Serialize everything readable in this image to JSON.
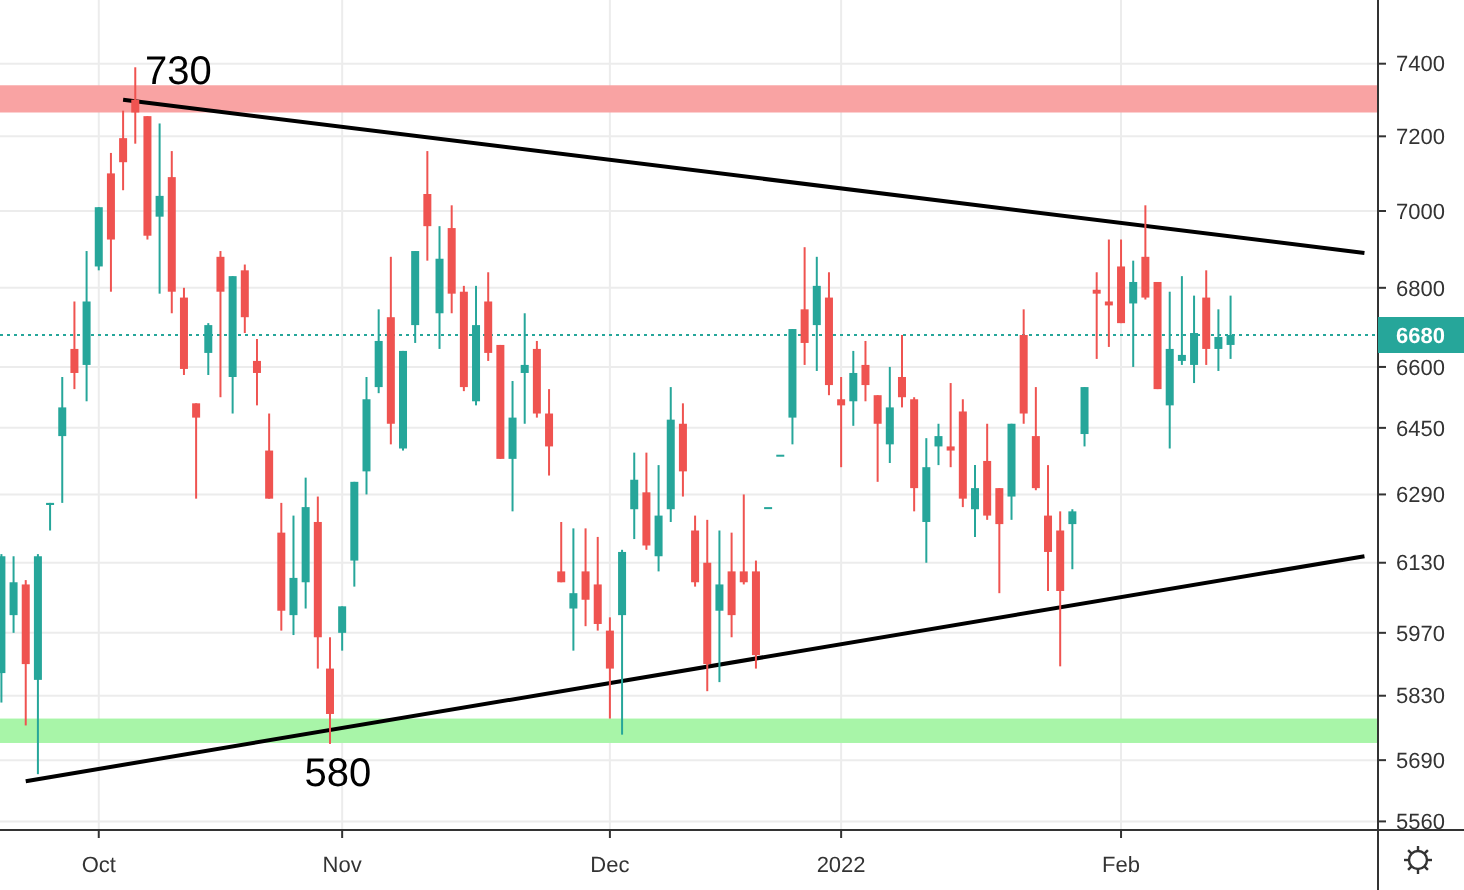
{
  "chart_data": {
    "type": "candlestick",
    "log": true,
    "grid": true,
    "categories": [
      null,
      null,
      null,
      null,
      null,
      null,
      null,
      null,
      "Oct",
      null,
      null,
      null,
      null,
      null,
      null,
      null,
      null,
      null,
      null,
      null,
      null,
      null,
      null,
      null,
      null,
      null,
      null,
      null,
      "Nov",
      null,
      null,
      null,
      null,
      null,
      null,
      null,
      null,
      null,
      null,
      null,
      null,
      null,
      null,
      null,
      null,
      null,
      null,
      null,
      null,
      null,
      "Dec",
      null,
      null,
      null,
      null,
      null,
      null,
      null,
      null,
      null,
      null,
      null,
      null,
      null,
      null,
      null,
      null,
      null,
      null,
      "2022",
      null,
      null,
      null,
      null,
      null,
      null,
      null,
      null,
      null,
      null,
      null,
      null,
      null,
      null,
      null,
      null,
      null,
      null,
      null,
      null,
      null,
      null,
      "Feb",
      null,
      null,
      null,
      null,
      null,
      null,
      null,
      null,
      null,
      null,
      null,
      null,
      null,
      null,
      null,
      null,
      null,
      null,
      null,
      null
    ],
    "ohlc": [
      [
        5880,
        6150,
        5815,
        6145
      ],
      [
        6010,
        6145,
        5970,
        6085
      ],
      [
        6080,
        6090,
        5765,
        5900
      ],
      [
        5865,
        6150,
        5660,
        6145
      ],
      [
        6265,
        6270,
        6205,
        6270
      ],
      [
        6430,
        6575,
        6270,
        6500
      ],
      [
        6645,
        6765,
        6545,
        6585
      ],
      [
        6605,
        6895,
        6515,
        6765
      ],
      [
        6855,
        7010,
        6845,
        7010
      ],
      [
        7100,
        7155,
        6790,
        6925
      ],
      [
        7195,
        7270,
        7055,
        7130
      ],
      [
        7300,
        7390,
        7180,
        7265
      ],
      [
        7255,
        7255,
        6925,
        6935
      ],
      [
        6985,
        7235,
        6785,
        7040
      ],
      [
        7090,
        7160,
        6735,
        6790
      ],
      [
        6775,
        6800,
        6580,
        6595
      ],
      [
        6510,
        6510,
        6280,
        6475
      ],
      [
        6635,
        6710,
        6580,
        6705
      ],
      [
        6880,
        6895,
        6525,
        6790
      ],
      [
        6575,
        6830,
        6485,
        6830
      ],
      [
        6845,
        6860,
        6685,
        6725
      ],
      [
        6615,
        6670,
        6505,
        6585
      ],
      [
        6395,
        6485,
        6280,
        6280
      ],
      [
        6200,
        6270,
        5975,
        6020
      ],
      [
        6010,
        6240,
        5965,
        6095
      ],
      [
        6085,
        6330,
        6025,
        6260
      ],
      [
        6225,
        6285,
        5890,
        5960
      ],
      [
        5890,
        5960,
        5725,
        5790
      ],
      [
        5970,
        6030,
        5930,
        6030
      ],
      [
        6135,
        6320,
        6075,
        6320
      ],
      [
        6345,
        6575,
        6290,
        6520
      ],
      [
        6550,
        6745,
        6535,
        6665
      ],
      [
        6725,
        6880,
        6410,
        6460
      ],
      [
        6400,
        6640,
        6395,
        6640
      ],
      [
        6705,
        6895,
        6660,
        6895
      ],
      [
        7045,
        7160,
        6870,
        6960
      ],
      [
        6735,
        6960,
        6645,
        6875
      ],
      [
        6955,
        7015,
        6735,
        6785
      ],
      [
        6790,
        6805,
        6540,
        6550
      ],
      [
        6515,
        6805,
        6505,
        6705
      ],
      [
        6765,
        6840,
        6615,
        6635
      ],
      [
        6655,
        6655,
        6375,
        6375
      ],
      [
        6375,
        6565,
        6250,
        6475
      ],
      [
        6585,
        6735,
        6460,
        6605
      ],
      [
        6645,
        6665,
        6475,
        6485
      ],
      [
        6485,
        6545,
        6335,
        6405
      ],
      [
        6110,
        6225,
        6085,
        6085
      ],
      [
        6025,
        6210,
        5930,
        6060
      ],
      [
        6110,
        6210,
        5985,
        6045
      ],
      [
        6080,
        6190,
        5975,
        5990
      ],
      [
        5975,
        6005,
        5780,
        5890
      ],
      [
        6010,
        6160,
        5745,
        6155
      ],
      [
        6255,
        6390,
        6185,
        6325
      ],
      [
        6295,
        6390,
        6160,
        6170
      ],
      [
        6145,
        6360,
        6110,
        6240
      ],
      [
        6255,
        6550,
        6225,
        6470
      ],
      [
        6460,
        6510,
        6285,
        6345
      ],
      [
        6205,
        6240,
        6075,
        6085
      ],
      [
        6130,
        6230,
        5840,
        5900
      ],
      [
        6020,
        6205,
        5860,
        6080
      ],
      [
        6110,
        6200,
        5960,
        6010
      ],
      [
        6110,
        6290,
        6080,
        6085
      ],
      [
        6110,
        6135,
        5890,
        5920
      ],
      [
        6260,
        6260,
        6260,
        6260
      ],
      [
        6385,
        6385,
        6385,
        6385
      ],
      [
        6475,
        6695,
        6410,
        6695
      ],
      [
        6745,
        6905,
        6605,
        6660
      ],
      [
        6705,
        6880,
        6590,
        6805
      ],
      [
        6775,
        6840,
        6530,
        6555
      ],
      [
        6520,
        6575,
        6355,
        6505
      ],
      [
        6515,
        6640,
        6455,
        6585
      ],
      [
        6605,
        6665,
        6515,
        6555
      ],
      [
        6530,
        6530,
        6320,
        6460
      ],
      [
        6410,
        6600,
        6365,
        6500
      ],
      [
        6575,
        6680,
        6500,
        6525
      ],
      [
        6520,
        6525,
        6250,
        6305
      ],
      [
        6225,
        6425,
        6130,
        6355
      ],
      [
        6405,
        6460,
        6360,
        6430
      ],
      [
        6405,
        6560,
        6355,
        6395
      ],
      [
        6490,
        6520,
        6260,
        6280
      ],
      [
        6255,
        6360,
        6190,
        6305
      ],
      [
        6370,
        6460,
        6230,
        6240
      ],
      [
        6305,
        6305,
        6060,
        6220
      ],
      [
        6285,
        6460,
        6230,
        6460
      ],
      [
        6680,
        6745,
        6460,
        6485
      ],
      [
        6430,
        6550,
        6300,
        6305
      ],
      [
        6240,
        6360,
        6065,
        6155
      ],
      [
        6205,
        6250,
        5895,
        6065
      ],
      [
        6220,
        6255,
        6115,
        6250
      ],
      [
        6435,
        6550,
        6405,
        6550
      ],
      [
        6795,
        6840,
        6620,
        6785
      ],
      [
        6765,
        6925,
        6650,
        6755
      ],
      [
        6855,
        6925,
        6710,
        6710
      ],
      [
        6760,
        6870,
        6600,
        6815
      ],
      [
        6880,
        7015,
        6770,
        6775
      ],
      [
        6815,
        6815,
        6545,
        6545
      ],
      [
        6505,
        6790,
        6400,
        6645
      ],
      [
        6615,
        6830,
        6605,
        6630
      ],
      [
        6605,
        6780,
        6560,
        6685
      ],
      [
        6775,
        6845,
        6605,
        6645
      ],
      [
        6645,
        6745,
        6590,
        6675
      ],
      [
        6655,
        6780,
        6620,
        6680
      ],
      null,
      null,
      null,
      null,
      null,
      null,
      null,
      null,
      null,
      null,
      null
    ],
    "colors": [
      "#26a69a",
      "#26a69a",
      "#ef5350",
      "#26a69a",
      "#26a69a",
      "#26a69a",
      "#ef5350",
      "#26a69a",
      "#26a69a",
      "#ef5350",
      "#ef5350",
      "#ef5350",
      "#ef5350",
      "#26a69a",
      "#ef5350",
      "#ef5350",
      "#ef5350",
      "#26a69a",
      "#ef5350",
      "#26a69a",
      "#ef5350",
      "#ef5350",
      "#ef5350",
      "#ef5350",
      "#26a69a",
      "#26a69a",
      "#ef5350",
      "#ef5350",
      "#26a69a",
      "#26a69a",
      "#26a69a",
      "#26a69a",
      "#ef5350",
      "#26a69a",
      "#26a69a",
      "#ef5350",
      "#26a69a",
      "#ef5350",
      "#ef5350",
      "#26a69a",
      "#ef5350",
      "#ef5350",
      "#26a69a",
      "#26a69a",
      "#ef5350",
      "#ef5350",
      "#ef5350",
      "#26a69a",
      "#ef5350",
      "#ef5350",
      "#ef5350",
      "#26a69a",
      "#26a69a",
      "#ef5350",
      "#26a69a",
      "#26a69a",
      "#ef5350",
      "#ef5350",
      "#ef5350",
      "#26a69a",
      "#ef5350",
      "#ef5350",
      "#ef5350",
      "#26a69a",
      "#26a69a",
      "#26a69a",
      "#ef5350",
      "#26a69a",
      "#ef5350",
      "#ef5350",
      "#26a69a",
      "#ef5350",
      "#ef5350",
      "#26a69a",
      "#ef5350",
      "#ef5350",
      "#26a69a",
      "#26a69a",
      "#ef5350",
      "#ef5350",
      "#26a69a",
      "#ef5350",
      "#ef5350",
      "#26a69a",
      "#ef5350",
      "#ef5350",
      "#ef5350",
      "#ef5350",
      "#26a69a",
      "#26a69a",
      "#ef5350",
      "#ef5350",
      "#ef5350",
      "#26a69a",
      "#ef5350",
      "#ef5350",
      "#26a69a",
      "#26a69a",
      "#26a69a",
      "#ef5350",
      "#26a69a",
      "#26a69a",
      null,
      null,
      null,
      null,
      null,
      null,
      null,
      null,
      null,
      null,
      null
    ],
    "series": [
      {
        "type": "line",
        "color": "#000000",
        "values": [
          null,
          null,
          null,
          null,
          null,
          null,
          null,
          null,
          null,
          null,
          7300,
          null,
          null,
          null,
          null,
          null,
          null,
          null,
          null,
          null,
          null,
          null,
          null,
          null,
          null,
          null,
          null,
          null,
          null,
          null,
          null,
          null,
          null,
          null,
          null,
          null,
          null,
          null,
          null,
          null,
          null,
          null,
          null,
          null,
          null,
          null,
          null,
          null,
          null,
          null,
          null,
          null,
          null,
          null,
          null,
          null,
          null,
          null,
          null,
          null,
          null,
          null,
          null,
          null,
          null,
          null,
          null,
          null,
          null,
          null,
          null,
          null,
          null,
          null,
          null,
          null,
          null,
          null,
          null,
          null,
          null,
          null,
          null,
          null,
          null,
          null,
          null,
          null,
          null,
          null,
          null,
          null,
          null,
          null,
          null,
          null,
          null,
          null,
          null,
          null,
          null,
          null,
          null,
          null,
          null,
          null,
          null,
          null,
          null,
          null,
          null,
          null,
          6890
        ]
      },
      {
        "type": "line",
        "color": "#000000",
        "values": [
          null,
          null,
          5645,
          null,
          null,
          null,
          null,
          null,
          null,
          null,
          null,
          null,
          null,
          null,
          null,
          null,
          null,
          null,
          null,
          null,
          null,
          null,
          null,
          null,
          null,
          null,
          null,
          null,
          null,
          null,
          null,
          null,
          null,
          null,
          null,
          null,
          null,
          null,
          null,
          null,
          null,
          null,
          null,
          null,
          null,
          null,
          null,
          null,
          null,
          null,
          null,
          null,
          null,
          null,
          null,
          null,
          null,
          null,
          null,
          null,
          null,
          null,
          null,
          null,
          null,
          null,
          null,
          null,
          null,
          null,
          null,
          null,
          null,
          null,
          null,
          null,
          null,
          null,
          null,
          null,
          null,
          null,
          null,
          null,
          null,
          null,
          null,
          null,
          null,
          null,
          null,
          null,
          null,
          null,
          null,
          null,
          null,
          null,
          null,
          null,
          null,
          null,
          null,
          null,
          null,
          null,
          null,
          null,
          null,
          null,
          null,
          null,
          6145
        ]
      }
    ],
    "ylim": [
      5542,
      7580
    ],
    "yticks": [
      7400,
      7200,
      7000,
      6800,
      6600,
      6450,
      6290,
      6130,
      5970,
      5830,
      5690,
      5560
    ],
    "bands": [
      {
        "axis": "y",
        "from": 7265,
        "to": 7340,
        "color": "#f9a3a3"
      },
      {
        "axis": "y",
        "from": 5727,
        "to": 5780,
        "color": "#a8f5a8"
      }
    ],
    "ref_lines": [
      {
        "axis": "y",
        "value": 6680,
        "label": "6680",
        "color": "#26a69a",
        "line_style": "dotted"
      }
    ],
    "annotations": [
      "730",
      "580"
    ]
  }
}
